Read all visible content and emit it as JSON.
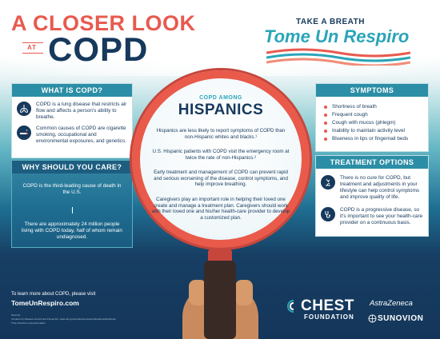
{
  "header": {
    "line1": "A CLOSER LOOK",
    "at": "AT",
    "line2": "COPD"
  },
  "brand": {
    "tagline": "TAKE A BREATH",
    "name": "Tome Un Respiro",
    "wave_colors": [
      "#e85a4f",
      "#2aa5b8",
      "#f08c78"
    ]
  },
  "what_is_copd": {
    "title": "WHAT IS COPD?",
    "items": [
      {
        "icon": "lungs-icon",
        "text": "COPD is a lung disease that restricts air flow and affects a person's ability to breathe."
      },
      {
        "icon": "cigarette-icon",
        "text": "Common causes of COPD are cigarette smoking, occupational and environmental exposures, and genetics."
      }
    ]
  },
  "why_care": {
    "title": "WHY SHOULD YOU CARE?",
    "items": [
      "COPD is the third-leading cause of death in the U.S.",
      "There are approximately 24 million people living with COPD today, half of whom remain undiagnosed."
    ]
  },
  "center": {
    "subtitle": "COPD AMONG",
    "title": "HISPANICS",
    "paragraphs": [
      "Hispanics are less likely to report symptoms of COPD than non-Hispanic whites and blacks.¹",
      "U.S. Hispanic patients with COPD visit the emergency room at twice the rate of non-Hispanics.²",
      "Early treatment and management of COPD can prevent rapid and serious worsening of the disease, control symptoms, and help improve breathing.",
      "Caregivers play an important role in helping their loved one create and manage a treatment plan. Caregivers should work with their loved one and his/her health-care provider to develop a customized plan."
    ]
  },
  "symptoms": {
    "title": "SYMPTOMS",
    "items": [
      "Shortness of breath",
      "Frequent cough",
      "Cough with mucus (phlegm)",
      "Inability to maintain activity level",
      "Blueness in lips or fingernail beds"
    ]
  },
  "treatment": {
    "title": "TREATMENT OPTIONS",
    "items": [
      {
        "icon": "microscope-icon",
        "text": "There is no cure for COPD, but treatment and adjustments in your lifestyle can help control symptoms and improve quality of life."
      },
      {
        "icon": "stethoscope-icon",
        "text": "COPD is a progressive disease, so it's important to see your health-care provider on a continuous basis."
      }
    ]
  },
  "footer": {
    "learn_more": "To learn more about COPD, please visit",
    "url": "TomeUnRespiro.com",
    "notes": [
      "Sources:",
      "¹Centers for Disease Control and Prevention: www.cdc.gov/copd/resources/publications/factsheets",
      "²The American Lung Association"
    ]
  },
  "sponsors": {
    "chest_name": "CHEST",
    "chest_foundation": "FOUNDATION",
    "astrazeneca": "AstraZeneca",
    "sunovion": "SUNOVION"
  }
}
